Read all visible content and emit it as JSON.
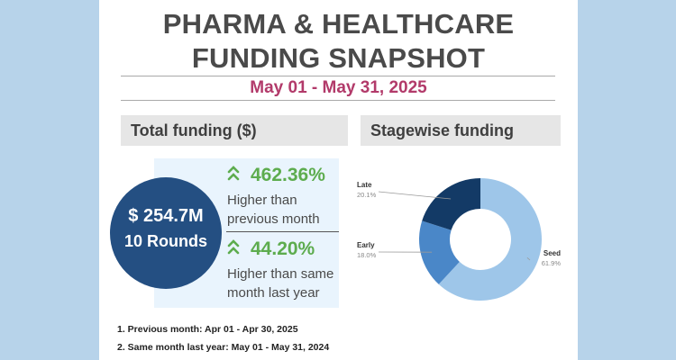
{
  "header": {
    "title_line1": "PHARMA & HEALTHCARE",
    "title_line2": "FUNDING SNAPSHOT",
    "date_range": "May 01 - May 31, 2025"
  },
  "total_funding": {
    "heading": "Total funding ($)",
    "amount": "$ 254.7M",
    "rounds": "10 Rounds",
    "stats": [
      {
        "value": "462.36%",
        "desc_line1": "Higher than",
        "desc_line2": "previous month"
      },
      {
        "value": "44.20%",
        "desc_line1": "Higher than same",
        "desc_line2": "month last year"
      }
    ]
  },
  "notes": [
    "1. Previous month: Apr 01 - Apr 30, 2025",
    "2. Same month last year: May 01 - May 31, 2024"
  ],
  "stagewise": {
    "heading": "Stagewise funding"
  },
  "chart_data": {
    "type": "pie",
    "title": "Stagewise funding",
    "donut": true,
    "slices": [
      {
        "label": "Seed",
        "value": 61.9,
        "display": "61.9%",
        "color": "#9ec6e9"
      },
      {
        "label": "Early",
        "value": 18.0,
        "display": "18.0%",
        "color": "#4a87c8"
      },
      {
        "label": "Late",
        "value": 20.1,
        "display": "20.1%",
        "color": "#133a66"
      }
    ]
  },
  "colors": {
    "background": "#b7d3ea",
    "accent_date": "#b23a6a",
    "positive": "#5dac4e",
    "bubble": "#244f82"
  }
}
